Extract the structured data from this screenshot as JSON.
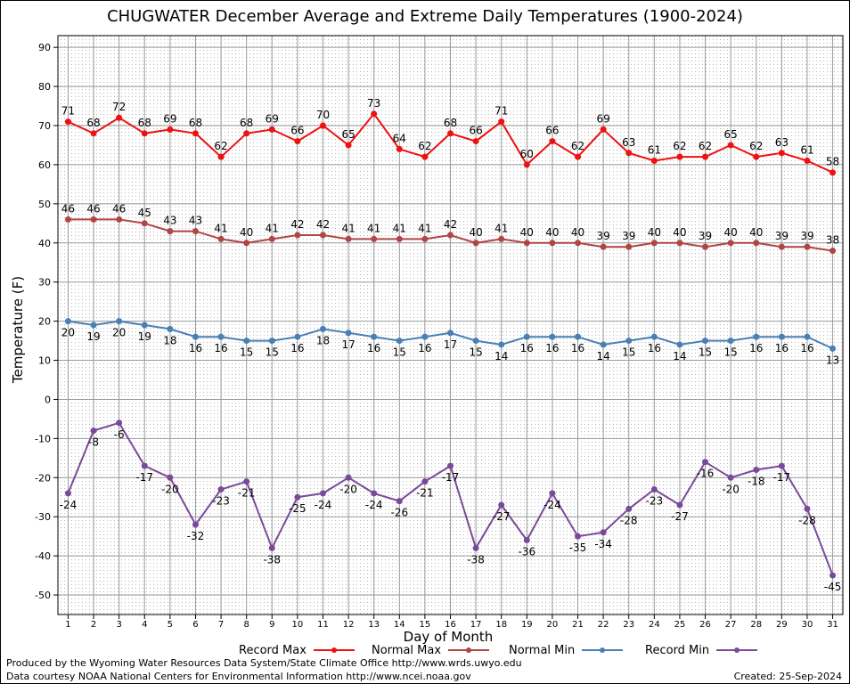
{
  "chart_data": {
    "type": "line",
    "title": "CHUGWATER December Average and Extreme Daily Temperatures (1900-2024)",
    "xlabel": "Day of Month",
    "ylabel": "Temperature (F)",
    "x": [
      1,
      2,
      3,
      4,
      5,
      6,
      7,
      8,
      9,
      10,
      11,
      12,
      13,
      14,
      15,
      16,
      17,
      18,
      19,
      20,
      21,
      22,
      23,
      24,
      25,
      26,
      27,
      28,
      29,
      30,
      31
    ],
    "xlim": [
      0.6,
      31.4
    ],
    "ylim": [
      -55,
      93
    ],
    "yticks": [
      -50,
      -40,
      -30,
      -20,
      -10,
      0,
      10,
      20,
      30,
      40,
      50,
      60,
      70,
      80,
      90
    ],
    "grid": true,
    "legend_position": "bottom",
    "series": [
      {
        "name": "Record Max",
        "color": "#ee1111",
        "label_position": "above",
        "values": [
          71,
          68,
          72,
          68,
          69,
          68,
          62,
          68,
          69,
          66,
          70,
          65,
          73,
          64,
          62,
          68,
          66,
          71,
          60,
          66,
          62,
          69,
          63,
          61,
          62,
          62,
          65,
          62,
          63,
          61,
          58
        ]
      },
      {
        "name": "Normal Max",
        "color": "#b04545",
        "label_position": "above",
        "values": [
          46,
          46,
          46,
          45,
          43,
          43,
          41,
          40,
          41,
          42,
          42,
          41,
          41,
          41,
          41,
          42,
          40,
          41,
          40,
          40,
          40,
          39,
          39,
          40,
          40,
          39,
          40,
          40,
          39,
          39,
          38
        ]
      },
      {
        "name": "Normal Min",
        "color": "#4a7fb5",
        "label_position": "below",
        "values": [
          20,
          19,
          20,
          19,
          18,
          16,
          16,
          15,
          15,
          16,
          18,
          17,
          16,
          15,
          16,
          17,
          15,
          14,
          16,
          16,
          16,
          14,
          15,
          16,
          14,
          15,
          15,
          16,
          16,
          16,
          13
        ]
      },
      {
        "name": "Record Min",
        "color": "#7a4a9a",
        "label_position": "below",
        "values": [
          -24,
          -8,
          -6,
          -17,
          -20,
          -32,
          -23,
          -21,
          -38,
          -25,
          -24,
          -20,
          -24,
          -26,
          -21,
          -17,
          -38,
          -27,
          -36,
          -24,
          -35,
          -34,
          -28,
          -23,
          -27,
          -16,
          -20,
          -18,
          -17,
          -28,
          -45
        ]
      }
    ]
  },
  "footer": {
    "produced_by": "Produced by the Wyoming Water Resources Data System/State Climate Office http://www.wrds.uwyo.edu",
    "data_courtesy": "Data courtesy NOAA National Centers for Environmental Information http://www.ncei.noaa.gov",
    "created": "Created:  25-Sep-2024"
  }
}
